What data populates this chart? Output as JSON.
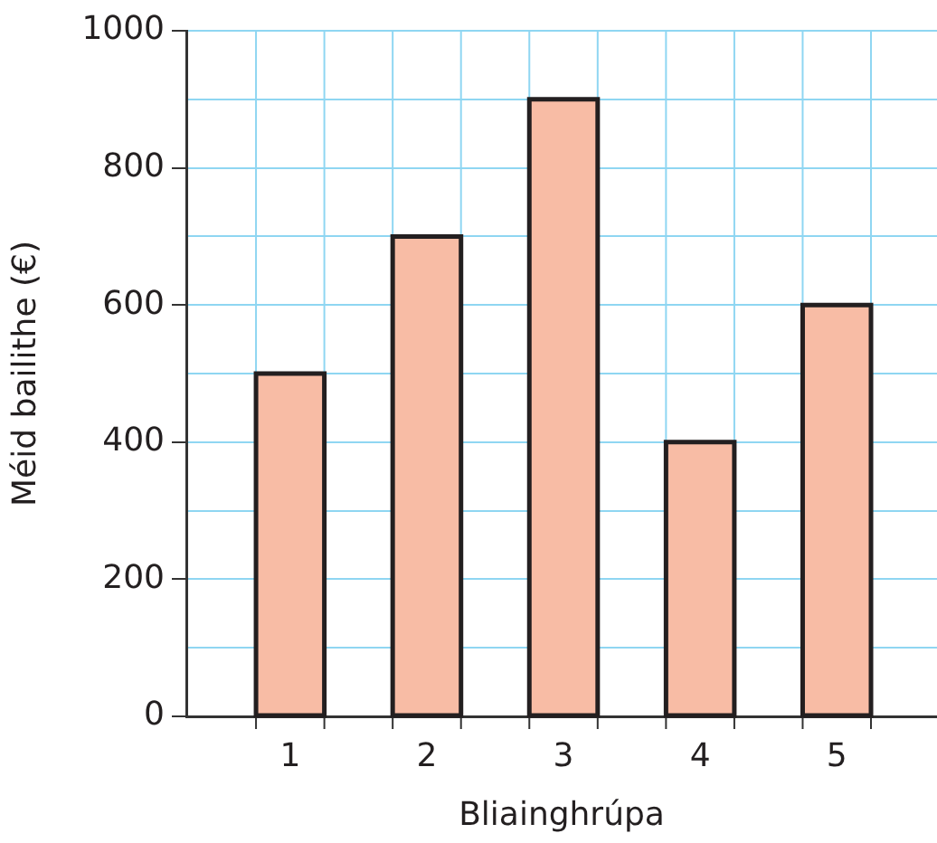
{
  "chart_data": {
    "type": "bar",
    "xlabel": "Bliainghrúpa",
    "ylabel": "Méid bailithe (€)",
    "categories": [
      "1",
      "2",
      "3",
      "4",
      "5"
    ],
    "values": [
      500,
      700,
      900,
      400,
      600
    ],
    "color": "#f8bca5",
    "ylim": [
      0,
      1000
    ],
    "yticks": [
      0,
      {
        "value": 100,
        "label": null
      },
      200,
      {
        "value": 300,
        "label": null
      },
      400,
      {
        "value": 500,
        "label": null
      },
      600,
      {
        "value": 700,
        "label": null
      },
      800,
      {
        "value": 900,
        "label": null
      },
      1000
    ],
    "grid": true,
    "legend": false
  }
}
